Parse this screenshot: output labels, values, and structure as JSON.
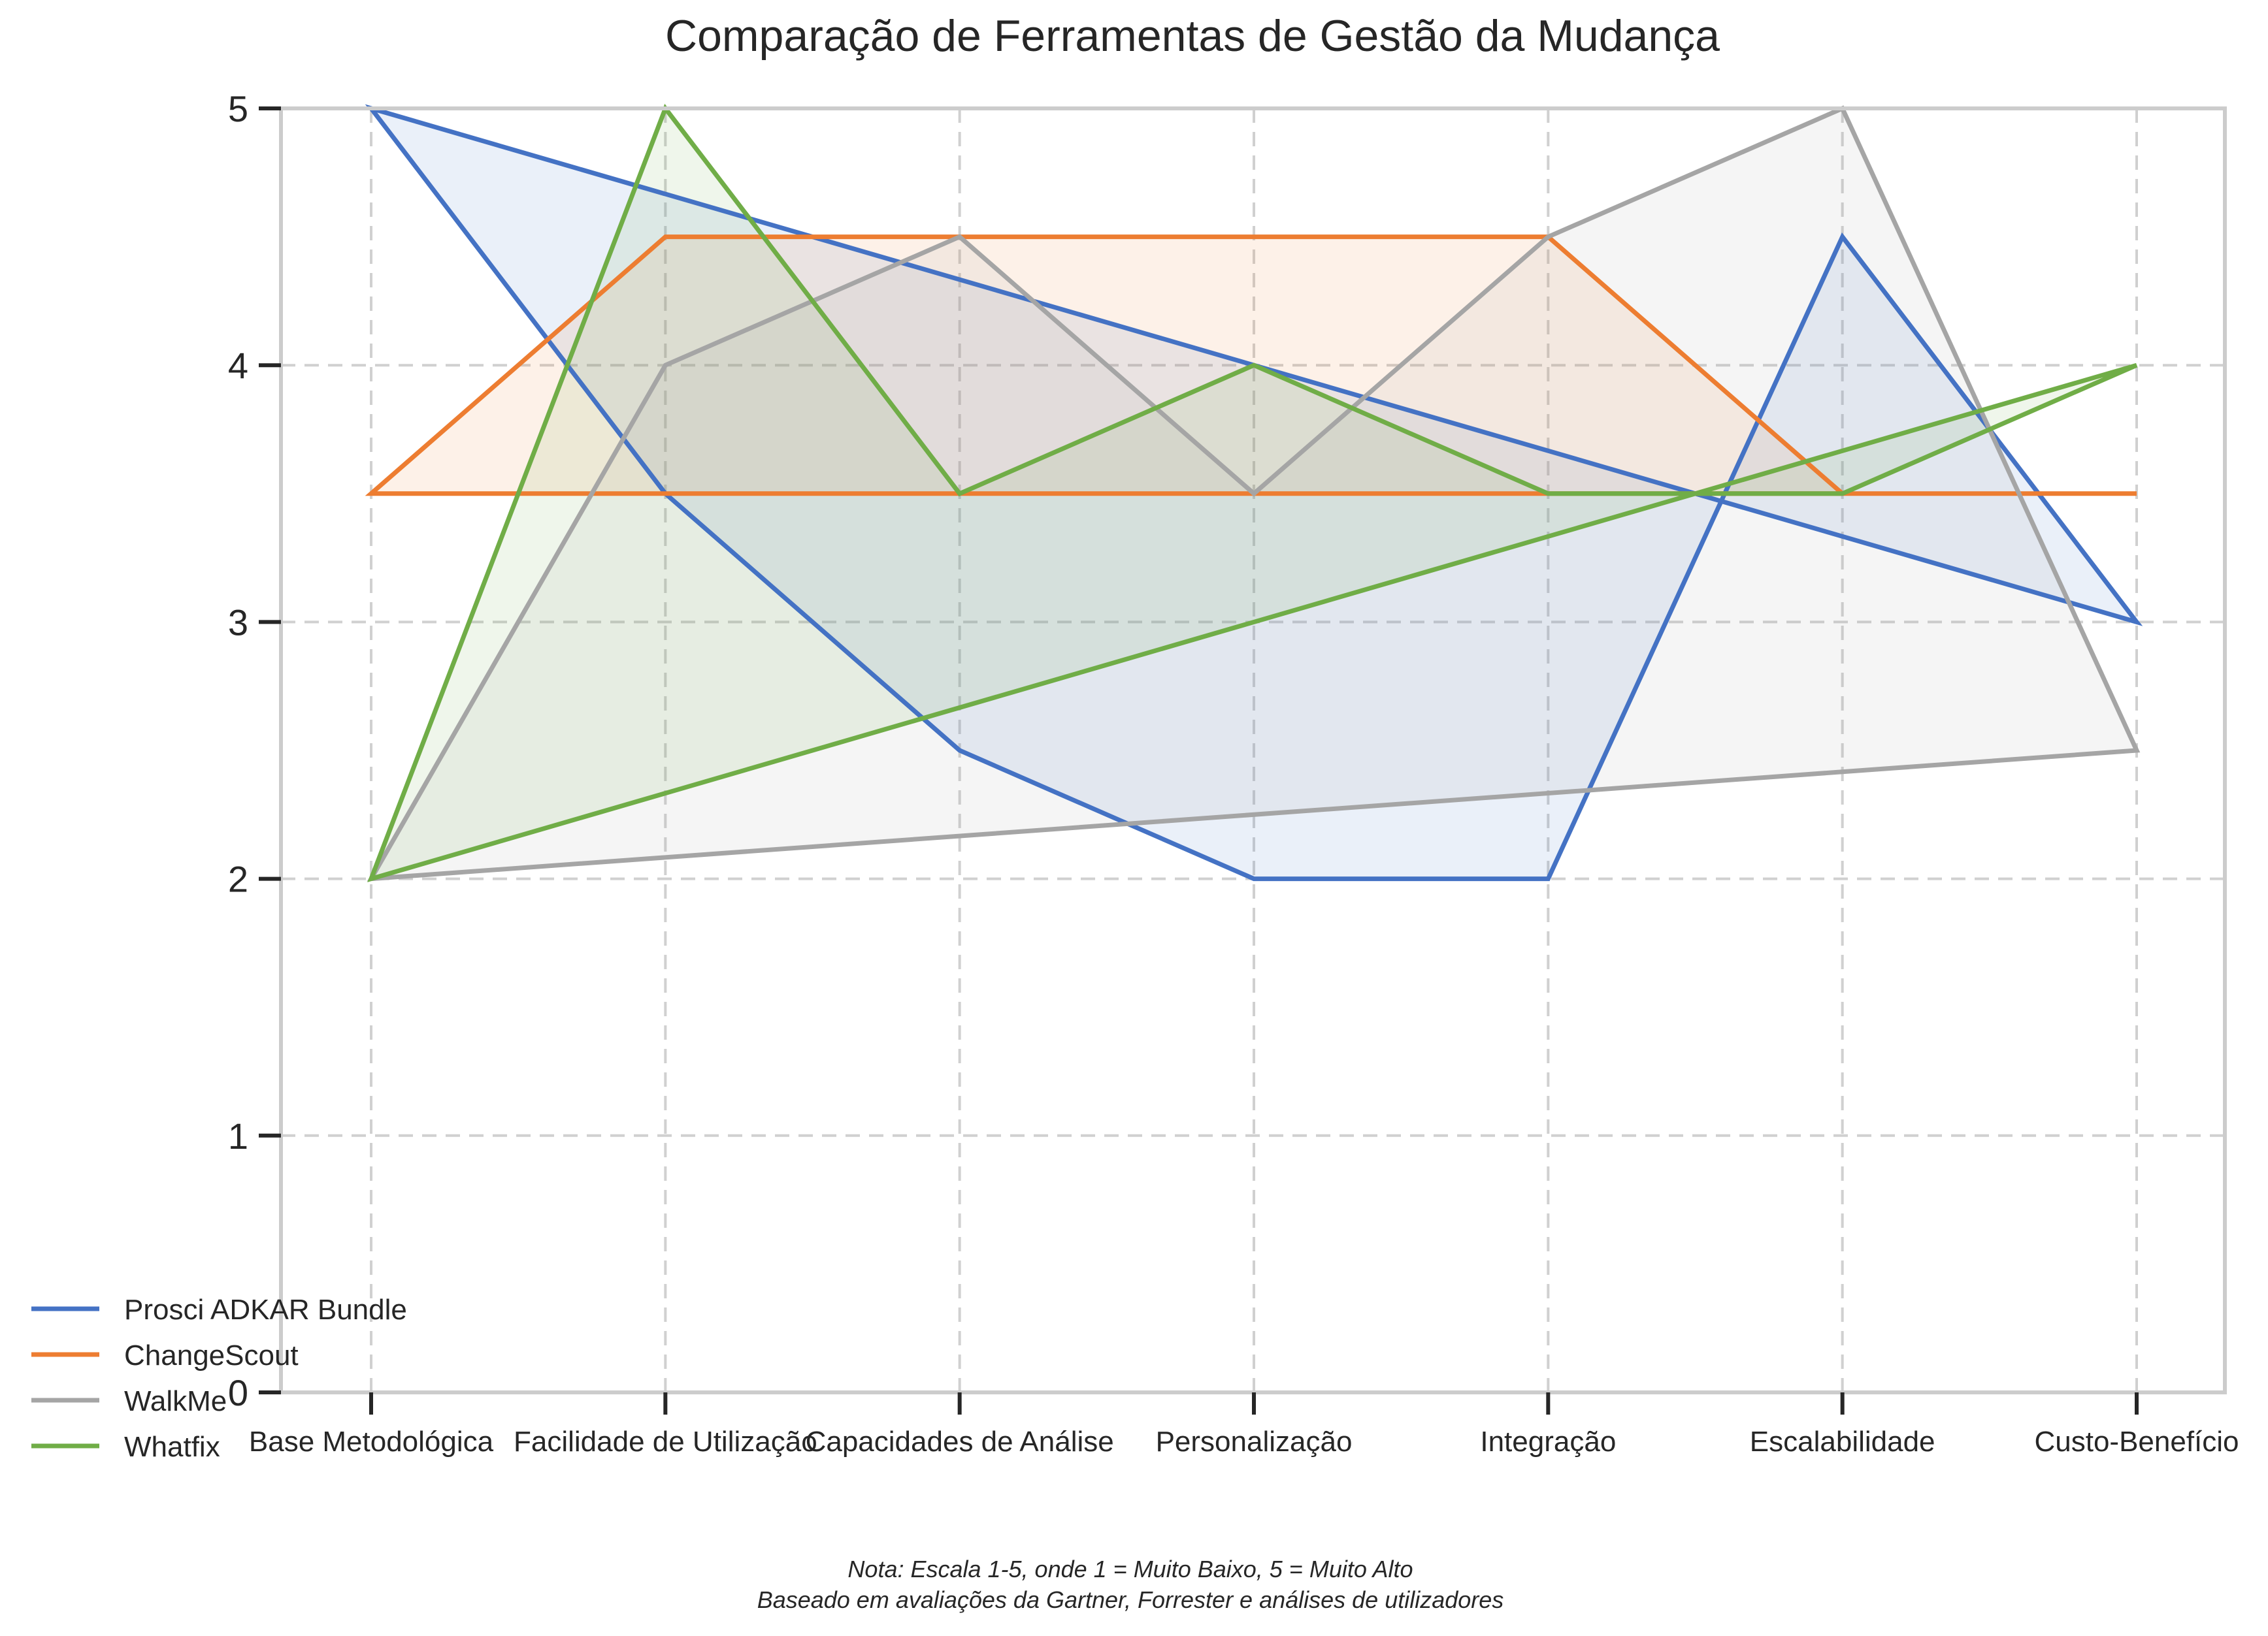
{
  "chart_data": {
    "type": "line",
    "title": "Comparação de Ferramentas de Gestão da Mudança",
    "categories": [
      "Base Metodológica",
      "Facilidade de Utilização",
      "Capacidades de Análise",
      "Personalização",
      "Integração",
      "Escalabilidade",
      "Custo-Benefício"
    ],
    "ylim": [
      0,
      5
    ],
    "yticks": [
      "0",
      "1",
      "2",
      "3",
      "4",
      "5"
    ],
    "grid": true,
    "legend_position": "bottom-left",
    "series": [
      {
        "name": "Prosci ADKAR Bundle",
        "color": "#4472c4",
        "values": [
          5,
          3.5,
          2.5,
          2,
          2,
          4.5,
          3
        ]
      },
      {
        "name": "ChangeScout",
        "color": "#ed7d31",
        "values": [
          3.5,
          4.5,
          4.5,
          4.5,
          4.5,
          3.5,
          3.5
        ]
      },
      {
        "name": "WalkMe",
        "color": "#a5a5a5",
        "values": [
          2,
          4,
          4.5,
          3.5,
          4.5,
          5,
          2.5
        ]
      },
      {
        "name": "Whatfix",
        "color": "#70ad47",
        "values": [
          2,
          5,
          3.5,
          4,
          3.5,
          3.5,
          4
        ]
      }
    ],
    "note_lines": [
      "Nota: Escala 1-5, onde 1 = Muito Baixo, 5 = Muito Alto",
      "Baseado em avaliações da Gartner, Forrester e análises de utilizadores"
    ]
  }
}
